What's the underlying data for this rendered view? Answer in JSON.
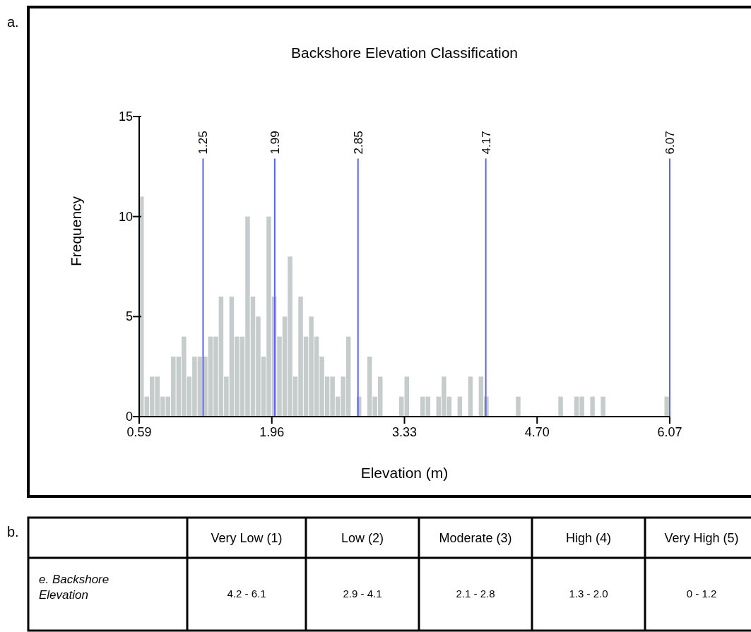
{
  "chart_data": [
    {
      "type": "histogram",
      "title": "Backshore Elevation Classification",
      "xlabel": "Elevation (m)",
      "ylabel": "Frequency",
      "annotations": [
        "a."
      ],
      "bins": [
        0.59,
        0.6448,
        0.6996,
        0.7544,
        0.8092,
        0.864,
        0.9188,
        0.9736,
        1.0284,
        1.0832,
        1.138,
        1.1928,
        1.2476,
        1.3024,
        1.3572,
        1.412,
        1.4668,
        1.5216,
        1.5764,
        1.6312,
        1.686,
        1.7408,
        1.7956,
        1.8504,
        1.9052,
        1.96,
        2.0148,
        2.0696,
        2.1244,
        2.1792,
        2.234,
        2.2888,
        2.3436,
        2.3984,
        2.4532,
        2.508,
        2.5628,
        2.6176,
        2.6724,
        2.7272,
        2.782,
        2.8368,
        2.8916,
        2.9464,
        3.0012,
        3.056,
        3.1108,
        3.1656,
        3.2204,
        3.2752,
        3.33,
        3.3848,
        3.4396,
        3.4944,
        3.5492,
        3.604,
        3.6588,
        3.7136,
        3.7684,
        3.8232,
        3.878,
        3.9328,
        3.9876,
        4.0424,
        4.0972,
        4.152,
        4.2068,
        4.2616,
        4.3164,
        4.3712,
        4.426,
        4.4808,
        4.5356,
        4.5904,
        4.6452,
        4.7,
        4.7548,
        4.8096,
        4.8644,
        4.9192,
        4.974,
        5.0288,
        5.0836,
        5.1384,
        5.1932,
        5.248,
        5.3028,
        5.3576,
        5.4124,
        5.4672,
        5.522,
        5.5768,
        5.6316,
        5.6864,
        5.7412,
        5.796,
        5.8508,
        5.9056,
        5.9604,
        6.0152,
        6.07
      ],
      "values": [
        11,
        1,
        2,
        2,
        1,
        1,
        3,
        3,
        4,
        2,
        3,
        3,
        3,
        4,
        4,
        6,
        2,
        6,
        4,
        4,
        10,
        6,
        5,
        3,
        10,
        6,
        4,
        5,
        8,
        2,
        6,
        4,
        5,
        4,
        3,
        2,
        2,
        1,
        2,
        4,
        0,
        1,
        0,
        3,
        1,
        2,
        0,
        0,
        0,
        1,
        2,
        0,
        0,
        1,
        1,
        0,
        1,
        2,
        1,
        0,
        1,
        0,
        2,
        0,
        2,
        1,
        0,
        0,
        0,
        0,
        0,
        1,
        0,
        0,
        0,
        0,
        0,
        0,
        0,
        1,
        0,
        0,
        1,
        1,
        0,
        1,
        0,
        1,
        0,
        0,
        0,
        0,
        0,
        0,
        0,
        0,
        0,
        0,
        0,
        1
      ],
      "color": "#c5cccb",
      "xlim": [
        0.59,
        6.07
      ],
      "ylim": [
        0,
        15
      ],
      "xticks": [
        0.59,
        1.96,
        3.33,
        {
          "value": 4.7,
          "label": "4.70"
        },
        6.07
      ],
      "yticks": [
        0,
        5,
        10,
        15
      ],
      "ref_lines": [
        {
          "axis": "x",
          "value": 1.25,
          "label": "1.25",
          "color": "#5a64f0"
        },
        {
          "axis": "x",
          "value": 1.99,
          "label": "1.99",
          "color": "#5a64f0"
        },
        {
          "axis": "x",
          "value": 2.85,
          "label": "2.85",
          "color": "#5a64f0"
        },
        {
          "axis": "x",
          "value": 4.17,
          "label": "4.17",
          "color": "#5a64f0"
        },
        {
          "axis": "x",
          "value": 6.07,
          "label": "6.07",
          "color": "#5a64f0"
        }
      ],
      "grid": false
    },
    {
      "type": "other",
      "annotations": [
        "b."
      ],
      "categories": [
        "Very Low (1)",
        "Low (2)",
        "Moderate (3)",
        "High (4)",
        "Very High (5)"
      ],
      "y_categories": [
        "e. Backshore Elevation"
      ],
      "cell_labels": [
        [
          "4.2 - 6.1",
          "2.9 - 4.1",
          "2.1 - 2.8",
          "1.3 - 2.0",
          "0 - 1.2"
        ]
      ]
    }
  ]
}
